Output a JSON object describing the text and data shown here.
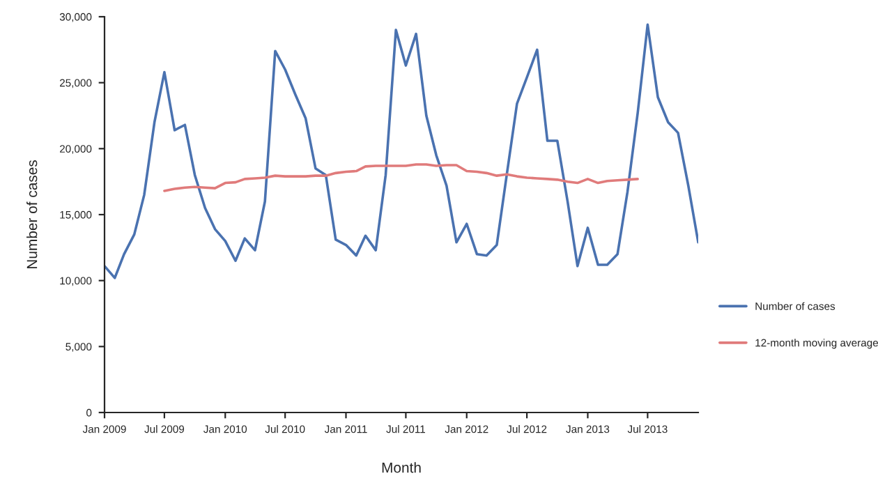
{
  "chart_data": {
    "type": "line",
    "xlabel": "Month",
    "ylabel": "Number of cases",
    "ylim": [
      0,
      30000
    ],
    "yticks": [
      {
        "value": 0,
        "label": "0"
      },
      {
        "value": 5000,
        "label": "5,000"
      },
      {
        "value": 10000,
        "label": "10,000"
      },
      {
        "value": 15000,
        "label": "15,000"
      },
      {
        "value": 20000,
        "label": "20,000"
      },
      {
        "value": 25000,
        "label": "25,000"
      },
      {
        "value": 30000,
        "label": "30,000"
      }
    ],
    "xlim": [
      "2009-01",
      "2013-12"
    ],
    "xticks": [
      {
        "value": "2009-01",
        "label": "Jan 2009"
      },
      {
        "value": "2009-07",
        "label": "Jul 2009"
      },
      {
        "value": "2010-01",
        "label": "Jan 2010"
      },
      {
        "value": "2010-07",
        "label": "Jul 2010"
      },
      {
        "value": "2011-01",
        "label": "Jan 2011"
      },
      {
        "value": "2011-07",
        "label": "Jul 2011"
      },
      {
        "value": "2012-01",
        "label": "Jan 2012"
      },
      {
        "value": "2012-07",
        "label": "Jul 2012"
      },
      {
        "value": "2013-01",
        "label": "Jan 2013"
      },
      {
        "value": "2013-07",
        "label": "Jul 2013"
      }
    ],
    "grid": false,
    "legend": "right",
    "marker": "none",
    "line_style": "solid",
    "series": [
      {
        "name": "Number of cases",
        "color": "#4a72b0",
        "x": [
          "2009-01",
          "2009-02",
          "2009-03",
          "2009-04",
          "2009-05",
          "2009-06",
          "2009-07",
          "2009-08",
          "2009-09",
          "2009-10",
          "2009-11",
          "2009-12",
          "2010-01",
          "2010-02",
          "2010-03",
          "2010-04",
          "2010-05",
          "2010-06",
          "2010-07",
          "2010-08",
          "2010-09",
          "2010-10",
          "2010-11",
          "2010-12",
          "2011-01",
          "2011-02",
          "2011-03",
          "2011-04",
          "2011-05",
          "2011-06",
          "2011-07",
          "2011-08",
          "2011-09",
          "2011-10",
          "2011-11",
          "2011-12",
          "2012-01",
          "2012-02",
          "2012-03",
          "2012-04",
          "2012-05",
          "2012-06",
          "2012-07",
          "2012-08",
          "2012-09",
          "2012-10",
          "2012-11",
          "2012-12",
          "2013-01",
          "2013-02",
          "2013-03",
          "2013-04",
          "2013-05",
          "2013-06",
          "2013-07",
          "2013-08",
          "2013-09",
          "2013-10",
          "2013-11",
          "2013-12"
        ],
        "values": [
          11100,
          10200,
          12000,
          13500,
          16500,
          22000,
          25800,
          21400,
          21800,
          18000,
          15500,
          13900,
          13000,
          11500,
          13200,
          12300,
          16000,
          27400,
          26000,
          24100,
          22300,
          18500,
          18000,
          13100,
          12700,
          11900,
          13400,
          12300,
          18000,
          29000,
          26300,
          28700,
          22500,
          19500,
          17200,
          12900,
          14300,
          12000,
          11900,
          12700,
          18000,
          23400,
          25400,
          27500,
          20600,
          20600,
          16000,
          11100,
          14000,
          11200,
          11200,
          12000,
          16700,
          22700,
          29400,
          23900,
          22000,
          21200,
          17200,
          12900
        ]
      },
      {
        "name": "12-month moving average",
        "color": "#e07b7b",
        "x": [
          "2009-07",
          "2009-08",
          "2009-09",
          "2009-10",
          "2009-11",
          "2009-12",
          "2010-01",
          "2010-02",
          "2010-03",
          "2010-04",
          "2010-05",
          "2010-06",
          "2010-07",
          "2010-08",
          "2010-09",
          "2010-10",
          "2010-11",
          "2010-12",
          "2011-01",
          "2011-02",
          "2011-03",
          "2011-04",
          "2011-05",
          "2011-06",
          "2011-07",
          "2011-08",
          "2011-09",
          "2011-10",
          "2011-11",
          "2011-12",
          "2012-01",
          "2012-02",
          "2012-03",
          "2012-04",
          "2012-05",
          "2012-06",
          "2012-07",
          "2012-08",
          "2012-09",
          "2012-10",
          "2012-11",
          "2012-12",
          "2013-01",
          "2013-02",
          "2013-03",
          "2013-04",
          "2013-05",
          "2013-06"
        ],
        "values": [
          16800,
          16950,
          17050,
          17100,
          17050,
          17000,
          17400,
          17450,
          17700,
          17750,
          17800,
          17950,
          17900,
          17900,
          17900,
          17950,
          17950,
          18150,
          18250,
          18300,
          18650,
          18700,
          18700,
          18700,
          18700,
          18800,
          18800,
          18700,
          18750,
          18750,
          18300,
          18250,
          18150,
          17950,
          18050,
          17900,
          17800,
          17750,
          17700,
          17650,
          17500,
          17400,
          17700,
          17400,
          17550,
          17600,
          17650,
          17700
        ]
      }
    ]
  }
}
